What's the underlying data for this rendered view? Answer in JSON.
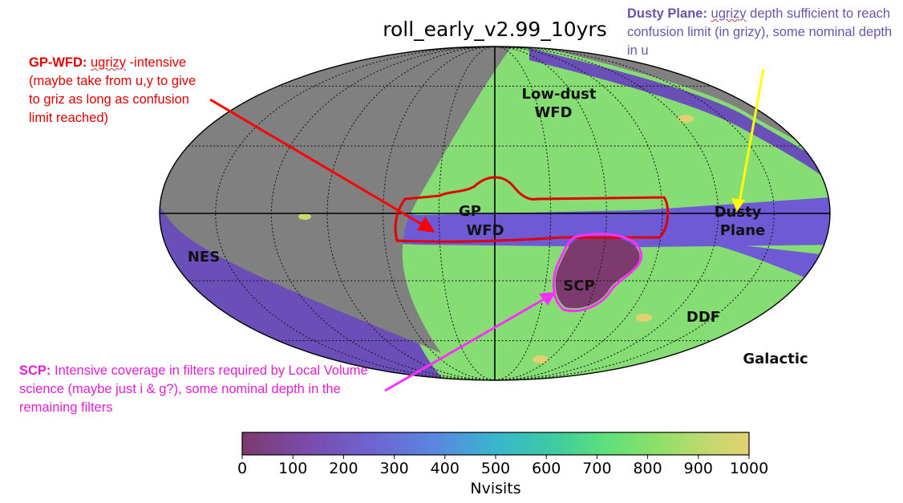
{
  "chart_data": {
    "type": "heatmap",
    "projection": "mollweide",
    "title": "roll_early_v2.99_10yrs",
    "colorbar": {
      "label": "Nvisits",
      "range": [
        0,
        1000
      ],
      "ticks": [
        0,
        100,
        200,
        300,
        400,
        500,
        600,
        700,
        800,
        900,
        1000
      ],
      "colormap": "viridis-like",
      "colors": [
        "#7d3a6e",
        "#7a4aa8",
        "#6f62d0",
        "#5a86e0",
        "#37b6cf",
        "#3ecc9f",
        "#5fe07a",
        "#8ee068",
        "#c2d86e",
        "#e4d070"
      ]
    },
    "grid": true,
    "regions": [
      {
        "label_line1": "Low-dust",
        "label_line2": "WFD",
        "approx_nvisits": 820
      },
      {
        "label_line1": "GP",
        "label_line2": "WFD",
        "approx_nvisits": 840
      },
      {
        "label_line1": "Dusty",
        "label_line2": "Plane",
        "approx_nvisits": 230
      },
      {
        "label_line1": "NES",
        "label_line2": "",
        "approx_nvisits": 220
      },
      {
        "label_line1": "SCP",
        "label_line2": "",
        "approx_nvisits": 60
      },
      {
        "label_line1": "DDF",
        "label_line2": "",
        "approx_nvisits": 950
      }
    ],
    "coordinate_label": "Galactic"
  },
  "annotations": {
    "gp_wfd": {
      "bold": "GP-WFD:",
      "word": "ugrizy",
      "rest": "-intensive (maybe take from u,y to give to griz as long as confusion limit reached)",
      "color": "#e00000"
    },
    "dusty_plane": {
      "bold": "Dusty Plane:",
      "word": "ugrizy",
      "rest": "depth sufficient to reach confusion limit (in grizy), some nominal depth in u",
      "color": "#6a54a8"
    },
    "scp": {
      "bold": "SCP:",
      "rest": "Intensive coverage in filters required by Local Volume science (maybe just i & g?), some nominal depth in the remaining filters",
      "color": "#e020d0"
    }
  }
}
